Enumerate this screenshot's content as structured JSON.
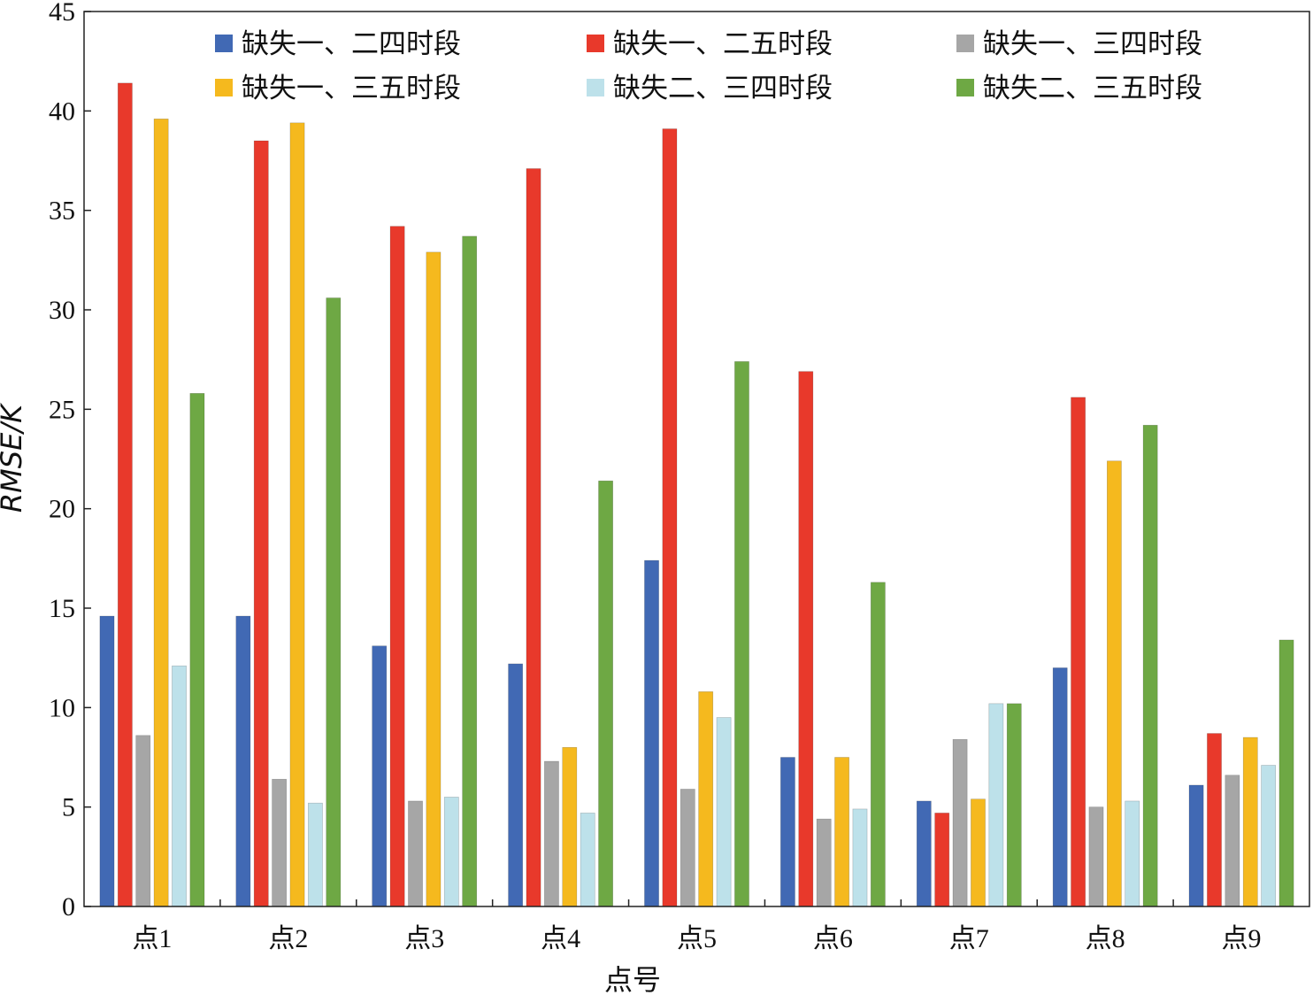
{
  "chart_data": {
    "type": "bar",
    "title": "",
    "xlabel": "点号",
    "ylabel": "RMSE/K",
    "ylim": [
      0,
      45
    ],
    "yticks": [
      0,
      5,
      10,
      15,
      20,
      25,
      30,
      35,
      40,
      45
    ],
    "legend_position": "top",
    "categories": [
      "点1",
      "点2",
      "点3",
      "点4",
      "点5",
      "点6",
      "点7",
      "点8",
      "点9"
    ],
    "series": [
      {
        "name": "缺失一、二四时段",
        "color": "#4169b4",
        "values": [
          14.6,
          14.6,
          13.1,
          12.2,
          17.4,
          7.5,
          5.3,
          12.0,
          6.1
        ]
      },
      {
        "name": "缺失一、二五时段",
        "color": "#e8392b",
        "values": [
          41.4,
          38.5,
          34.2,
          37.1,
          39.1,
          26.9,
          4.7,
          25.6,
          8.7
        ]
      },
      {
        "name": "缺失一、三四时段",
        "color": "#a6a6a6",
        "values": [
          8.6,
          6.4,
          5.3,
          7.3,
          5.9,
          4.4,
          8.4,
          5.0,
          6.6
        ]
      },
      {
        "name": "缺失一、三五时段",
        "color": "#f5b91e",
        "values": [
          39.6,
          39.4,
          32.9,
          8.0,
          10.8,
          7.5,
          5.4,
          22.4,
          8.5
        ]
      },
      {
        "name": "缺失二、三四时段",
        "color": "#bde1ea",
        "values": [
          12.1,
          5.2,
          5.5,
          4.7,
          9.5,
          4.9,
          10.2,
          5.3,
          7.1
        ]
      },
      {
        "name": "缺失二、三五时段",
        "color": "#6ea844",
        "values": [
          25.8,
          30.6,
          33.7,
          21.4,
          27.4,
          16.3,
          10.2,
          24.2,
          13.4
        ]
      }
    ]
  }
}
